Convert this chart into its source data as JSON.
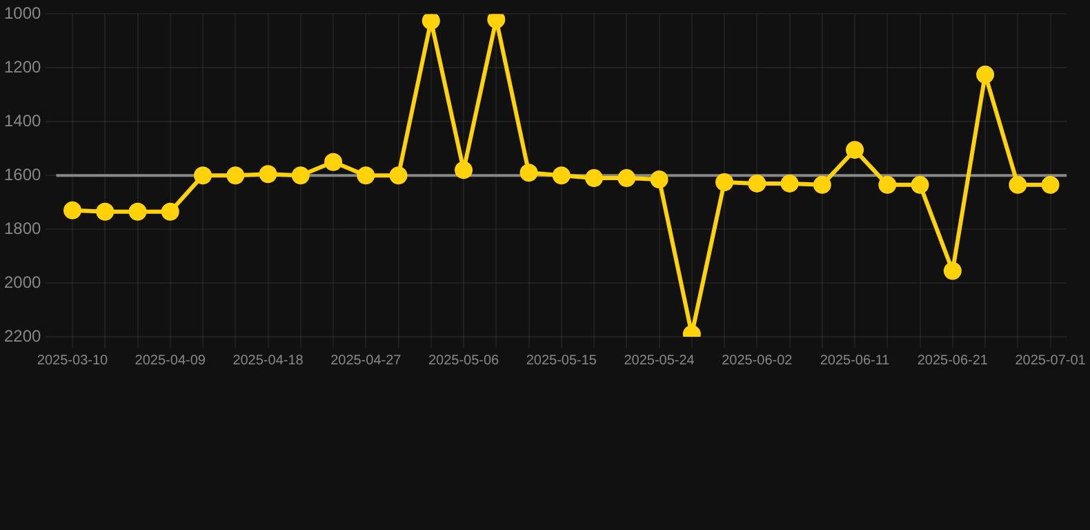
{
  "chart_data": {
    "type": "line",
    "categories": [
      "2025-03-10",
      null,
      null,
      "2025-04-09",
      null,
      null,
      "2025-04-18",
      null,
      null,
      "2025-04-27",
      null,
      null,
      "2025-05-06",
      null,
      null,
      "2025-05-15",
      null,
      null,
      "2025-05-24",
      null,
      null,
      "2025-06-02",
      null,
      null,
      "2025-06-11",
      null,
      null,
      "2025-06-21",
      null,
      null,
      "2025-07-01"
    ],
    "series": [
      {
        "color": "#ffd20a",
        "values": [
          1730,
          1735,
          1735,
          1735,
          1600,
          1600,
          1595,
          1600,
          1550,
          1600,
          1600,
          1025,
          1580,
          1020,
          1590,
          1600,
          1610,
          1610,
          1615,
          2190,
          1625,
          1630,
          1630,
          1635,
          1505,
          1635,
          1635,
          1955,
          1225,
          1635,
          1635
        ]
      }
    ],
    "ylim": [
      2200,
      1000
    ],
    "yticks": [
      1000,
      1200,
      1400,
      1600,
      1800,
      2000,
      2200
    ],
    "ref_lines": [
      {
        "axis": "y",
        "value": 1600,
        "color": "#888888"
      }
    ],
    "grid": true,
    "marker": "circle",
    "line_style": "solid",
    "legend": false
  }
}
